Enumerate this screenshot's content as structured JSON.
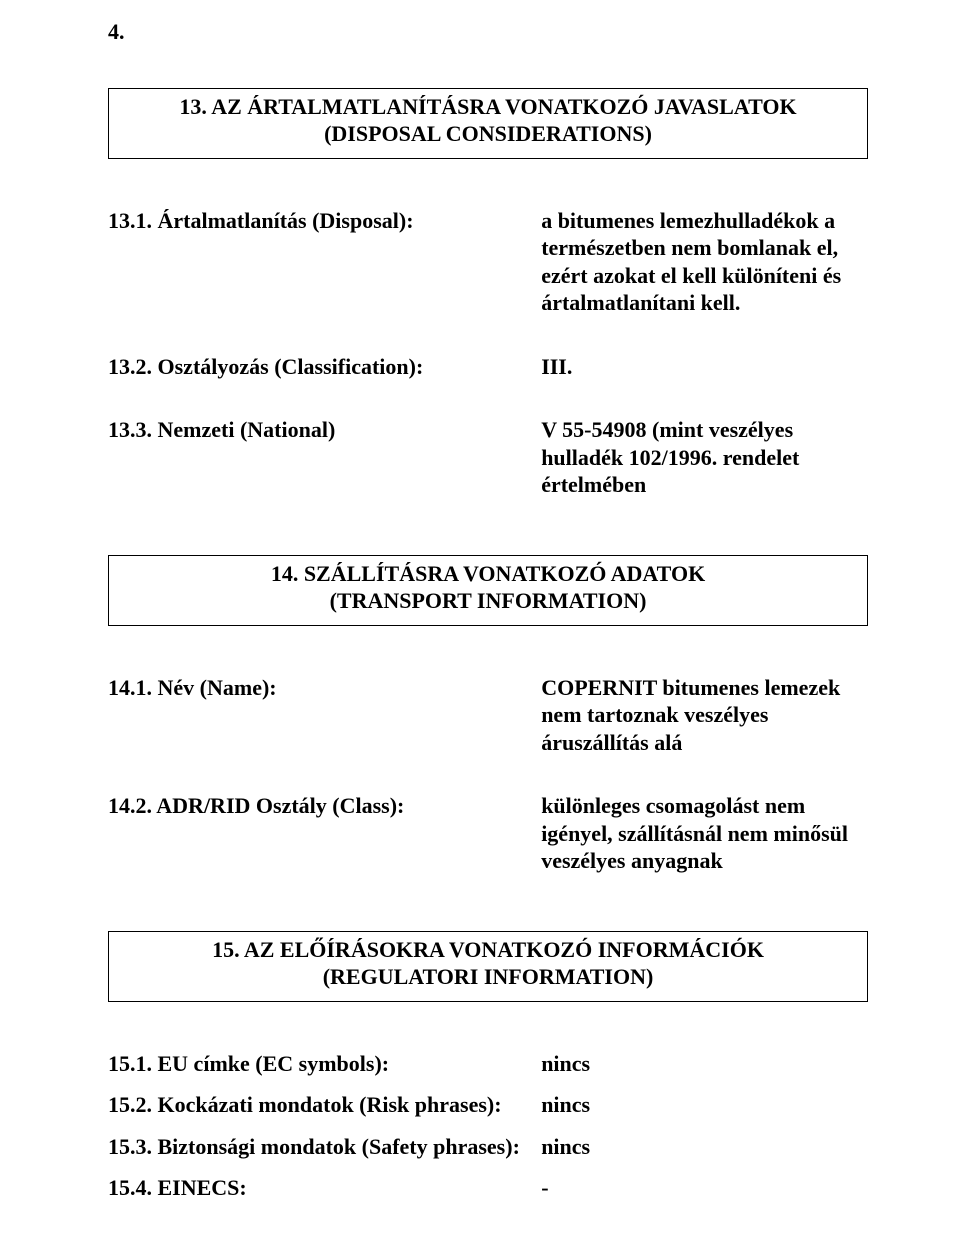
{
  "page_number": "4.",
  "section13": {
    "title": "13. AZ ÁRTALMATLANÍTÁSRA VONATKOZÓ JAVASLATOK",
    "sub": "(DISPOSAL CONSIDERATIONS)",
    "items": [
      {
        "label": "13.1. Ártalmatlanítás (Disposal):",
        "value": "a bitumenes lemezhulladékok a természetben nem bomlanak el, ezért azokat el kell különíteni és ártalmatlanítani kell."
      },
      {
        "label": "13.2. Osztályozás (Classification):",
        "value": "III."
      },
      {
        "label": "13.3. Nemzeti (National)",
        "value": "V 55-54908 (mint veszélyes hulladék 102/1996. rendelet értelmében"
      }
    ]
  },
  "section14": {
    "title": "14. SZÁLLÍTÁSRA VONATKOZÓ ADATOK",
    "sub": "(TRANSPORT INFORMATION)",
    "items": [
      {
        "label": "14.1. Név (Name):",
        "value": "COPERNIT bitumenes lemezek nem tartoznak veszélyes áruszállítás alá"
      },
      {
        "label": "14.2. ADR/RID Osztály (Class):",
        "value": "különleges csomagolást nem igényel, szállításnál nem minősül veszélyes anyagnak"
      }
    ]
  },
  "section15": {
    "title": "15. AZ ELŐÍRÁSOKRA VONATKOZÓ INFORMÁCIÓK",
    "sub": "(REGULATORI INFORMATION)",
    "items": [
      {
        "label": "15.1. EU címke (EC symbols):",
        "value": "nincs"
      },
      {
        "label": "15.2. Kockázati mondatok (Risk phrases):",
        "value": "nincs"
      },
      {
        "label": "15.3. Biztonsági mondatok (Safety phrases):",
        "value": "nincs"
      },
      {
        "label": "15.4. EINECS:",
        "value": "-"
      }
    ]
  }
}
